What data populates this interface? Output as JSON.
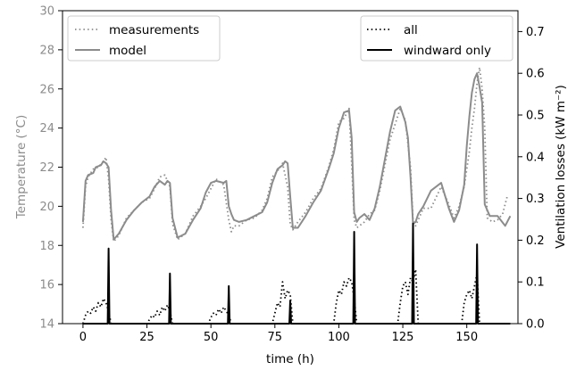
{
  "chart_data": {
    "type": "line",
    "title": "",
    "xlabel": "time (h)",
    "ylabel_left": "Temperature (°C)",
    "ylabel_right": "Ventilation losses (kW m⁻²)",
    "xlim": [
      -8,
      170
    ],
    "ylim_left": [
      14,
      30
    ],
    "ylim_right": [
      0,
      0.75
    ],
    "x_ticks": [
      0,
      25,
      50,
      75,
      100,
      125,
      150
    ],
    "y_ticks_left": [
      14,
      16,
      18,
      20,
      22,
      24,
      26,
      28,
      30
    ],
    "y_ticks_right": [
      0.0,
      0.1,
      0.2,
      0.3,
      0.4,
      0.5,
      0.6,
      0.7
    ],
    "x_tick_labels": [
      "0",
      "25",
      "50",
      "75",
      "100",
      "125",
      "150"
    ],
    "y_tick_labels_left": [
      "14",
      "16",
      "18",
      "20",
      "22",
      "24",
      "26",
      "28",
      "30"
    ],
    "y_tick_labels_right": [
      "0.0",
      "0.1",
      "0.2",
      "0.3",
      "0.4",
      "0.5",
      "0.6",
      "0.7"
    ],
    "grid": false,
    "colors": {
      "temperature": "#8c8c8c",
      "ventilation": "#000000"
    },
    "legend_left": {
      "placement": "top-left",
      "entries": [
        {
          "label": "measurements",
          "style": "dotted",
          "color": "#8c8c8c"
        },
        {
          "label": "model",
          "style": "solid",
          "color": "#8c8c8c"
        }
      ]
    },
    "legend_right": {
      "placement": "top-right",
      "entries": [
        {
          "label": "all",
          "style": "dotted",
          "color": "#000000"
        },
        {
          "label": "windward only",
          "style": "solid",
          "color": "#000000"
        }
      ]
    },
    "series": [
      {
        "name": "model",
        "axis": "left",
        "style": "solid",
        "x": [
          0,
          1,
          2,
          4,
          5,
          7,
          8,
          9,
          10,
          11,
          12,
          14,
          17,
          20,
          23,
          26,
          28,
          30,
          32,
          33,
          34,
          35,
          37,
          40,
          43,
          46,
          48,
          50,
          52,
          55,
          56,
          57,
          58,
          59,
          61,
          64,
          67,
          70,
          72,
          74,
          76,
          78,
          79,
          80,
          81,
          82,
          84,
          87,
          90,
          93,
          96,
          98,
          100,
          102,
          104,
          105,
          106,
          107,
          108,
          110,
          112,
          114,
          116,
          118,
          120,
          122,
          124,
          126,
          127,
          128,
          129,
          130,
          131,
          133,
          136,
          140,
          143,
          145,
          147,
          149,
          150,
          151,
          152,
          153,
          154,
          155,
          156,
          157,
          159,
          162,
          165,
          167
        ],
        "y": [
          19.2,
          21.3,
          21.6,
          21.7,
          22.0,
          22.1,
          22.3,
          22.2,
          22.0,
          19.8,
          18.3,
          18.6,
          19.3,
          19.8,
          20.2,
          20.5,
          21.0,
          21.3,
          21.1,
          21.3,
          21.2,
          19.4,
          18.4,
          18.6,
          19.3,
          19.9,
          20.7,
          21.2,
          21.3,
          21.2,
          21.3,
          20.0,
          19.6,
          19.3,
          19.2,
          19.3,
          19.5,
          19.7,
          20.2,
          21.2,
          21.9,
          22.1,
          22.3,
          22.2,
          20.5,
          18.9,
          18.9,
          19.5,
          20.2,
          20.8,
          21.9,
          22.7,
          24.0,
          24.8,
          24.9,
          23.5,
          19.7,
          19.2,
          19.4,
          19.6,
          19.3,
          19.9,
          21.0,
          22.4,
          23.8,
          24.9,
          25.1,
          24.3,
          23.5,
          21.5,
          19.1,
          19.2,
          19.6,
          20.0,
          20.8,
          21.2,
          19.9,
          19.2,
          19.8,
          21.1,
          23.1,
          24.6,
          25.8,
          26.5,
          26.8,
          26.1,
          25.3,
          20.1,
          19.5,
          19.5,
          19.0,
          19.5
        ]
      },
      {
        "name": "measurements",
        "axis": "left",
        "style": "dotted",
        "x": [
          0,
          1,
          2,
          4,
          6,
          8,
          9,
          10,
          11,
          12,
          14,
          17,
          20,
          23,
          26,
          28,
          30,
          32,
          34,
          35,
          37,
          40,
          43,
          46,
          48,
          50,
          52,
          55,
          57,
          58,
          59,
          61,
          64,
          67,
          70,
          72,
          74,
          76,
          78,
          80,
          81,
          82,
          84,
          87,
          90,
          93,
          96,
          98,
          100,
          102,
          104,
          105,
          106,
          107,
          108,
          110,
          112,
          114,
          116,
          118,
          120,
          122,
          124,
          126,
          128,
          129,
          130,
          131,
          133,
          136,
          140,
          143,
          145,
          147,
          149,
          151,
          152,
          153,
          154,
          155,
          156,
          157,
          158,
          160,
          162,
          164,
          166
        ],
        "y": [
          18.9,
          21.0,
          21.5,
          21.9,
          22.0,
          22.3,
          22.5,
          21.4,
          19.3,
          18.2,
          18.5,
          19.4,
          19.8,
          20.2,
          20.4,
          20.9,
          21.5,
          21.6,
          21.0,
          19.1,
          18.3,
          18.6,
          19.5,
          20.0,
          20.4,
          20.9,
          21.4,
          21.1,
          19.3,
          18.7,
          19.0,
          19.0,
          19.3,
          19.4,
          19.8,
          20.4,
          21.5,
          21.8,
          22.2,
          21.0,
          19.1,
          18.8,
          19.2,
          19.7,
          20.4,
          20.9,
          22.0,
          22.9,
          24.3,
          24.5,
          25.0,
          22.2,
          19.3,
          18.9,
          19.0,
          19.2,
          19.6,
          19.8,
          20.8,
          22.1,
          23.4,
          24.2,
          25.0,
          24.4,
          22.0,
          19.3,
          19.0,
          19.3,
          19.9,
          19.9,
          21.0,
          20.1,
          19.4,
          20.0,
          21.0,
          22.8,
          24.0,
          25.0,
          26.3,
          27.1,
          26.0,
          24.0,
          19.4,
          19.2,
          19.3,
          19.6,
          20.6
        ]
      },
      {
        "name": "windward only",
        "axis": "right",
        "style": "solid",
        "x": [
          10,
          34,
          57,
          81,
          106,
          129,
          154
        ],
        "y": [
          0.18,
          0.12,
          0.09,
          0.055,
          0.22,
          0.24,
          0.19
        ]
      },
      {
        "name": "all",
        "axis": "right",
        "style": "dotted",
        "x": [
          0,
          1,
          2,
          3,
          4,
          5,
          6,
          7,
          8,
          9,
          10,
          11,
          25,
          26,
          27,
          28,
          29,
          30,
          31,
          32,
          33,
          34,
          35,
          49,
          50,
          51,
          52,
          53,
          54,
          55,
          56,
          57,
          58,
          74,
          75,
          76,
          77,
          78,
          79,
          80,
          81,
          82,
          98,
          99,
          100,
          101,
          102,
          103,
          104,
          105,
          106,
          107,
          123,
          124,
          125,
          126,
          127,
          128,
          129,
          130,
          131,
          148,
          149,
          150,
          151,
          152,
          153,
          154,
          155
        ],
        "y": [
          0.0,
          0.02,
          0.03,
          0.025,
          0.04,
          0.03,
          0.05,
          0.04,
          0.06,
          0.05,
          0.03,
          0.0,
          0.0,
          0.01,
          0.02,
          0.015,
          0.03,
          0.02,
          0.04,
          0.03,
          0.045,
          0.03,
          0.0,
          0.0,
          0.015,
          0.025,
          0.02,
          0.035,
          0.025,
          0.04,
          0.03,
          0.02,
          0.0,
          0.0,
          0.025,
          0.05,
          0.04,
          0.1,
          0.06,
          0.08,
          0.07,
          0.0,
          0.0,
          0.05,
          0.08,
          0.07,
          0.1,
          0.09,
          0.11,
          0.1,
          0.06,
          0.0,
          0.0,
          0.05,
          0.09,
          0.1,
          0.07,
          0.11,
          0.1,
          0.13,
          0.0,
          0.0,
          0.05,
          0.07,
          0.08,
          0.06,
          0.09,
          0.12,
          0.0
        ]
      }
    ]
  }
}
